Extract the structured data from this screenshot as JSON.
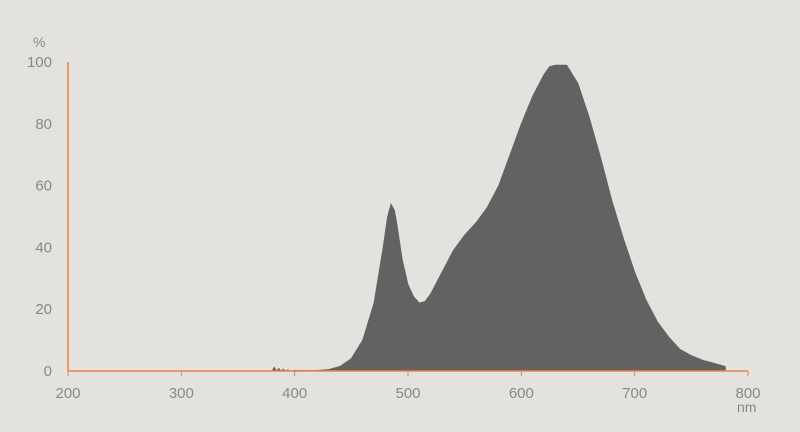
{
  "chart_data": {
    "type": "area",
    "title": "",
    "xlabel": "nm",
    "ylabel": "%",
    "xlim": [
      200,
      800
    ],
    "ylim": [
      0,
      100
    ],
    "xticks": [
      200,
      300,
      400,
      500,
      600,
      700,
      800
    ],
    "yticks": [
      0,
      20,
      40,
      60,
      80,
      100
    ],
    "grid": false,
    "colors": {
      "fill": "#636263",
      "axis": "#e8834a",
      "background": "#e4e2df",
      "text": "#8a8886"
    },
    "x": [
      380,
      382,
      384,
      386,
      388,
      390,
      392,
      394,
      396,
      400,
      410,
      420,
      430,
      440,
      450,
      460,
      470,
      478,
      482,
      485,
      488,
      490,
      495,
      500,
      505,
      510,
      515,
      520,
      530,
      540,
      550,
      560,
      570,
      580,
      590,
      600,
      610,
      620,
      625,
      630,
      635,
      640,
      650,
      660,
      670,
      680,
      690,
      700,
      710,
      720,
      730,
      740,
      750,
      760,
      770,
      780
    ],
    "values": [
      0,
      1.2,
      0,
      0.8,
      0,
      0.6,
      0,
      0.4,
      0,
      0.2,
      0.1,
      0.2,
      0.5,
      1.5,
      4,
      10,
      22,
      40,
      50,
      54,
      52,
      48,
      36,
      28,
      24,
      22,
      22.5,
      25,
      32,
      39,
      44,
      48,
      53,
      60,
      70,
      80,
      89,
      96,
      98.5,
      99,
      99,
      99,
      93,
      82,
      69,
      55,
      43,
      32,
      23,
      16,
      11,
      7,
      5,
      3.5,
      2.5,
      1.5
    ]
  }
}
